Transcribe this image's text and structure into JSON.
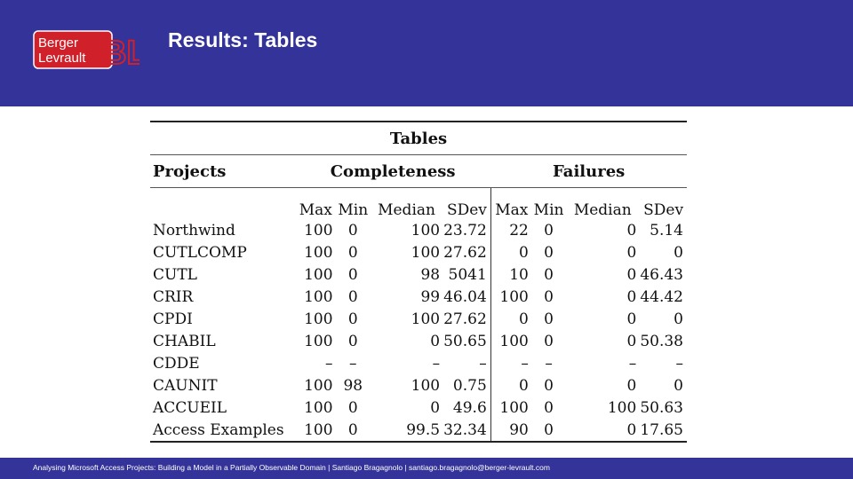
{
  "slide": {
    "title": "Results: Tables"
  },
  "logo": {
    "line1": "Berger",
    "line2": "Levrault",
    "mark": "BL",
    "color": "#d0202a"
  },
  "table": {
    "caption": "Tables",
    "group_headers": [
      "Projects",
      "Completeness",
      "Failures"
    ],
    "sub_headers": [
      "Max",
      "Min",
      "Median",
      "SDev",
      "Max",
      "Min",
      "Median",
      "SDev"
    ],
    "rows": [
      [
        "Northwind",
        "100",
        "0",
        "100",
        "23.72",
        "22",
        "0",
        "0",
        "5.14"
      ],
      [
        "CUTLCOMP",
        "100",
        "0",
        "100",
        "27.62",
        "0",
        "0",
        "0",
        "0"
      ],
      [
        "CUTL",
        "100",
        "0",
        "98",
        "5041",
        "10",
        "0",
        "0",
        "46.43"
      ],
      [
        "CRIR",
        "100",
        "0",
        "99",
        "46.04",
        "100",
        "0",
        "0",
        "44.42"
      ],
      [
        "CPDI",
        "100",
        "0",
        "100",
        "27.62",
        "0",
        "0",
        "0",
        "0"
      ],
      [
        "CHABIL",
        "100",
        "0",
        "0",
        "50.65",
        "100",
        "0",
        "0",
        "50.38"
      ],
      [
        "CDDE",
        "–",
        "–",
        "–",
        "–",
        "–",
        "–",
        "–",
        "–"
      ],
      [
        "CAUNIT",
        "100",
        "98",
        "100",
        "0.75",
        "0",
        "0",
        "0",
        "0"
      ],
      [
        "ACCUEIL",
        "100",
        "0",
        "0",
        "49.6",
        "100",
        "0",
        "100",
        "50.63"
      ],
      [
        "Access Examples",
        "100",
        "0",
        "99.5",
        "32.34",
        "90",
        "0",
        "0",
        "17.65"
      ]
    ]
  },
  "footer": {
    "text": "Analysing Microsoft Access Projects: Building a Model in a Partially Observable Domain | Santiago Bragagnolo | santiago.bragagnolo@berger-levrault.com"
  },
  "colors": {
    "primary": "#343399",
    "brand_red": "#d0202a"
  }
}
